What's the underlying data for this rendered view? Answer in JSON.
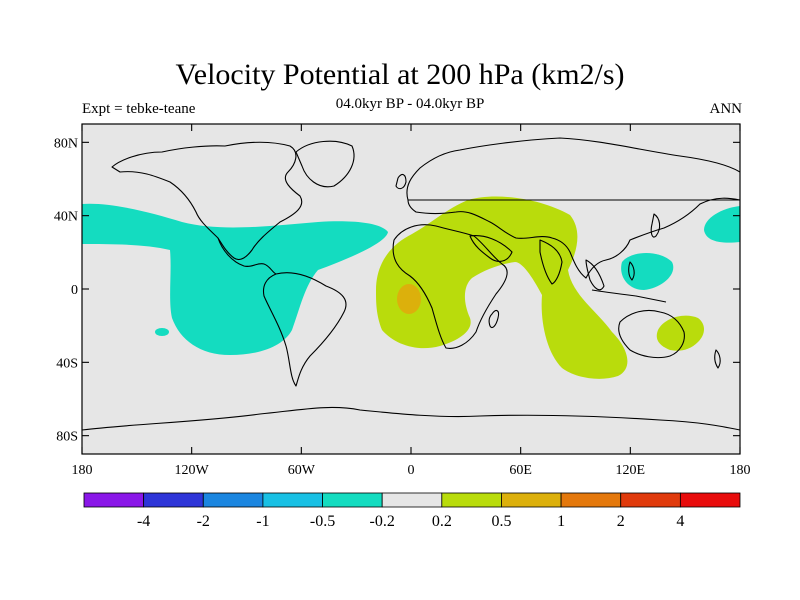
{
  "title": "Velocity Potential at 200 hPa (km2/s)",
  "subtitle_left": "Expt = tebke-teane",
  "subtitle_center": "04.0kyr BP - 04.0kyr BP",
  "subtitle_right": "ANN",
  "y_ticks": [
    {
      "value": 80,
      "label": "80N"
    },
    {
      "value": 40,
      "label": "40N"
    },
    {
      "value": 0,
      "label": "0"
    },
    {
      "value": -40,
      "label": "40S"
    },
    {
      "value": -80,
      "label": "80S"
    }
  ],
  "x_ticks": [
    {
      "value": -180,
      "label": "180"
    },
    {
      "value": -120,
      "label": "120W"
    },
    {
      "value": -60,
      "label": "60W"
    },
    {
      "value": 0,
      "label": "0"
    },
    {
      "value": 60,
      "label": "60E"
    },
    {
      "value": 120,
      "label": "120E"
    },
    {
      "value": 180,
      "label": "180"
    }
  ],
  "colorbar": {
    "colors": [
      "#8a17e8",
      "#2e35d8",
      "#1b86e0",
      "#18c0e4",
      "#14dcc0",
      "#e6e6e6",
      "#b9dc0c",
      "#dcb00c",
      "#e4780c",
      "#e03a0c",
      "#e80c0c"
    ],
    "labels": [
      "-4",
      "-2",
      "-1",
      "-0.5",
      "-0.2",
      "0.2",
      "0.5",
      "1",
      "2",
      "4"
    ]
  },
  "colors": {
    "neutral": "#e6e6e6",
    "negative": "#14dcc0",
    "positive": "#b9dc0c",
    "positive_strong": "#dcb00c"
  }
}
